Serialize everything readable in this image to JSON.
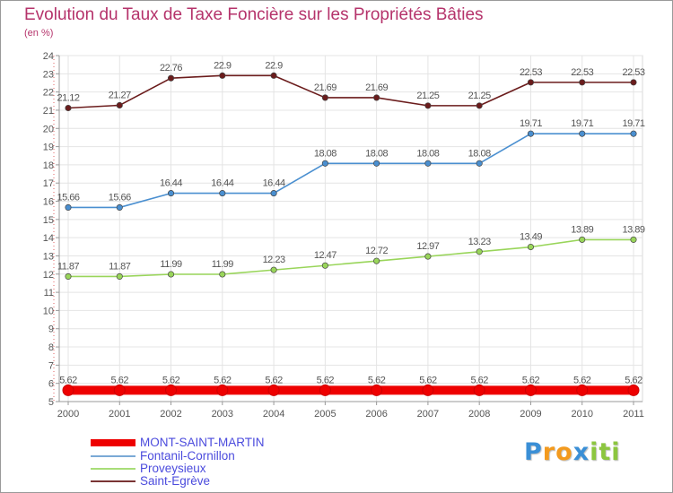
{
  "header": {
    "title": "Evolution du Taux de Taxe Foncière sur les Propriétés Bâties",
    "subtitle": "(en %)"
  },
  "chart_data": {
    "type": "line",
    "title": "Evolution du Taux de Taxe Foncière sur les Propriétés Bâties",
    "ylabel": "(en %)",
    "xlabel": "",
    "categories": [
      "2000",
      "2001",
      "2002",
      "2003",
      "2004",
      "2005",
      "2006",
      "2007",
      "2008",
      "2009",
      "2010",
      "2011"
    ],
    "ylim": [
      5,
      24
    ],
    "yticks": [
      5,
      6,
      7,
      8,
      9,
      10,
      11,
      12,
      13,
      14,
      15,
      16,
      17,
      18,
      19,
      20,
      21,
      22,
      23,
      24
    ],
    "grid": true,
    "legend_position": "bottom-left",
    "series": [
      {
        "name": "MONT-SAINT-MARTIN",
        "color": "#ee0000",
        "values": [
          5.62,
          5.62,
          5.62,
          5.62,
          5.62,
          5.62,
          5.62,
          5.62,
          5.62,
          5.62,
          5.62,
          5.62
        ],
        "labels": [
          "5.62",
          "5.62",
          "5.62",
          "5.62",
          "5.62",
          "5.62",
          "5.62",
          "5.62",
          "5.62",
          "5.62",
          "5.62",
          "5.62"
        ]
      },
      {
        "name": "Fontanil-Cornillon",
        "color": "#4a8fd0",
        "values": [
          15.66,
          15.66,
          16.44,
          16.44,
          16.44,
          18.08,
          18.08,
          18.08,
          18.08,
          19.71,
          19.71,
          19.71
        ],
        "labels": [
          "15.66",
          "15.66",
          "16.44",
          "16.44",
          "16.44",
          "18.08",
          "18.08",
          "18.08",
          "18.08",
          "19.71",
          "19.71",
          "19.71"
        ]
      },
      {
        "name": "Proveysieux",
        "color": "#99d55a",
        "values": [
          11.87,
          11.87,
          11.99,
          11.99,
          12.23,
          12.47,
          12.72,
          12.97,
          13.23,
          13.49,
          13.89,
          13.89
        ],
        "labels": [
          "11.87",
          "11.87",
          "11.99",
          "11.99",
          "12.23",
          "12.47",
          "12.72",
          "12.97",
          "13.23",
          "13.49",
          "13.89",
          "13.89"
        ]
      },
      {
        "name": "Saint-Egrève",
        "color": "#6b1c1c",
        "values": [
          21.12,
          21.27,
          22.76,
          22.9,
          22.9,
          21.69,
          21.69,
          21.25,
          21.25,
          22.53,
          22.53,
          22.53
        ],
        "labels": [
          "21.12",
          "21.27",
          "22.76",
          "22.9",
          "22.9",
          "21.69",
          "21.69",
          "21.25",
          "21.25",
          "22.53",
          "22.53",
          "22.53"
        ]
      }
    ]
  },
  "legend": {
    "items": [
      {
        "label": "MONT-SAINT-MARTIN",
        "color": "#ee0000"
      },
      {
        "label": "Fontanil-Cornillon",
        "color": "#7aa9d6"
      },
      {
        "label": "Proveysieux",
        "color": "#a8dd78"
      },
      {
        "label": "Saint-Egrève",
        "color": "#7a3434"
      }
    ]
  },
  "logo": {
    "letters": [
      "P",
      "r",
      "o",
      "x",
      "i",
      "t",
      "i"
    ],
    "colors": [
      "#3a8fd6",
      "#f39a1e",
      "#f39a1e",
      "#3a8fd6",
      "#8cc63f",
      "#8cc63f",
      "#8cc63f"
    ]
  }
}
